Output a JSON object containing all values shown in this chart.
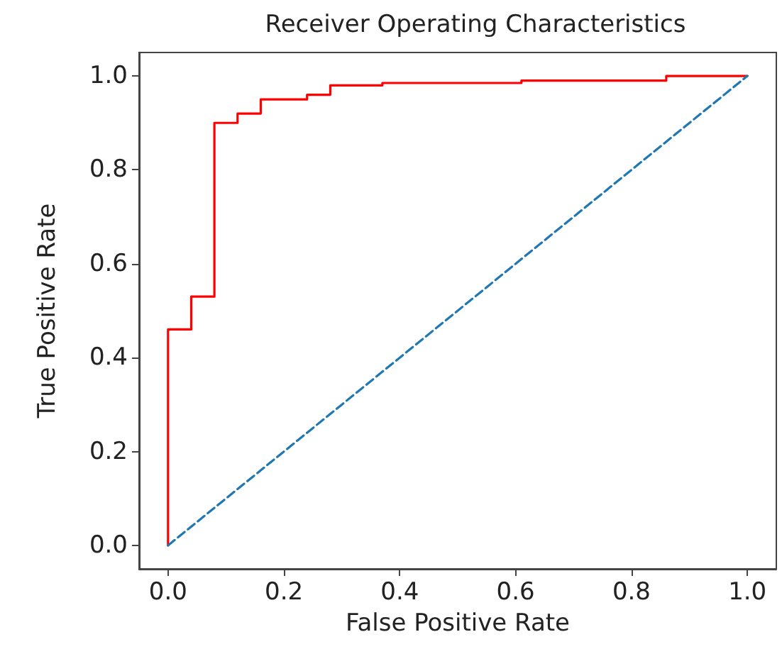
{
  "chart_data": {
    "type": "line",
    "title": "Receiver Operating Characteristics",
    "xlabel": "False Positive Rate",
    "ylabel": "True Positive Rate",
    "series": [
      {
        "type": "step",
        "color": "#ff0000",
        "line_style": "solid",
        "x": [
          0,
          0,
          0.04,
          0.08,
          0.12,
          0.16,
          0.24,
          0.28,
          0.37,
          0.61,
          0.86,
          1.0
        ],
        "values": [
          0,
          0.46,
          0.53,
          0.9,
          0.92,
          0.95,
          0.96,
          0.98,
          0.985,
          0.99,
          1.0,
          1.0
        ]
      },
      {
        "type": "line",
        "color": "#1f77b4",
        "line_style": "dashed",
        "x": [
          0,
          1
        ],
        "values": [
          0,
          1
        ]
      }
    ],
    "xlim": [
      -0.05,
      1.05
    ],
    "ylim": [
      -0.05,
      1.05
    ],
    "xticks": [
      {
        "value": 0,
        "label": "0.0"
      },
      {
        "value": 0.2,
        "label": "0.2"
      },
      {
        "value": 0.4,
        "label": "0.4"
      },
      {
        "value": 0.6,
        "label": "0.6"
      },
      {
        "value": 0.8,
        "label": "0.8"
      },
      {
        "value": 1,
        "label": "1.0"
      }
    ],
    "yticks": [
      {
        "value": 0,
        "label": "0.0"
      },
      {
        "value": 0.2,
        "label": "0.2"
      },
      {
        "value": 0.4,
        "label": "0.4"
      },
      {
        "value": 0.6,
        "label": "0.6"
      },
      {
        "value": 0.8,
        "label": "0.8"
      },
      {
        "value": 1,
        "label": "1.0"
      }
    ],
    "grid": false,
    "marker": "none"
  }
}
